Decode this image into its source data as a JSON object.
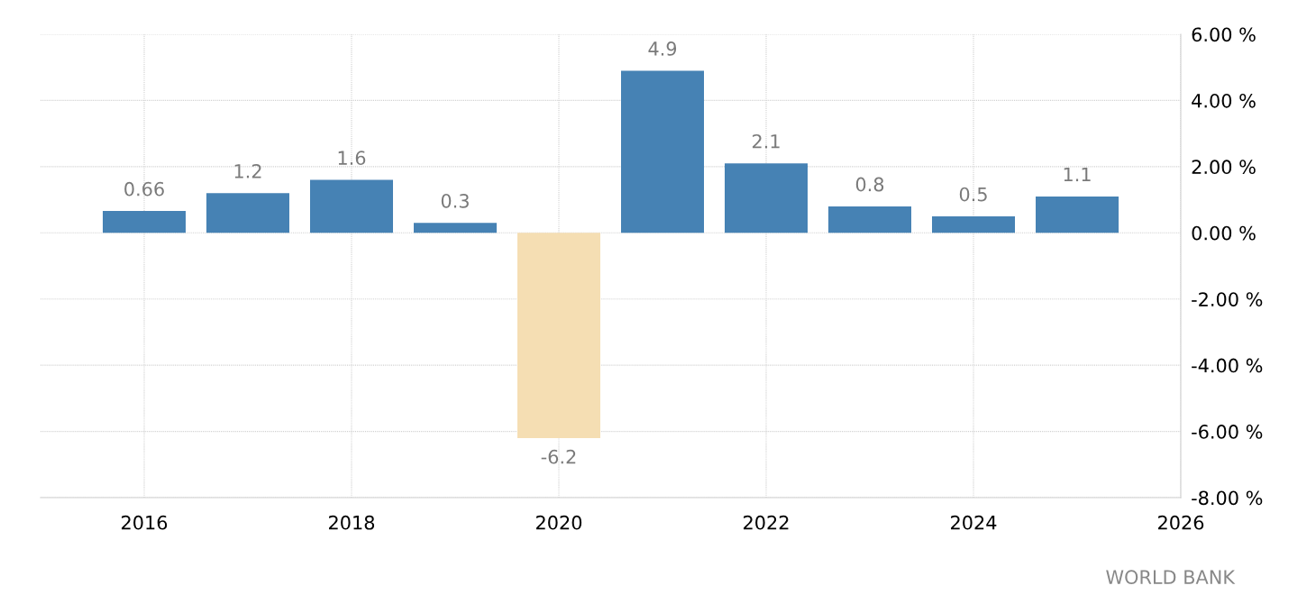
{
  "chart_data": {
    "type": "bar",
    "x": [
      2016,
      2017,
      2018,
      2019,
      2020,
      2021,
      2022,
      2023,
      2024,
      2025
    ],
    "values": [
      0.66,
      1.2,
      1.6,
      0.3,
      -6.2,
      4.9,
      2.1,
      0.8,
      0.5,
      1.1
    ],
    "colors": [
      "#4682b4",
      "#4682b4",
      "#4682b4",
      "#4682b4",
      "#f5deb3",
      "#4682b4",
      "#4682b4",
      "#4682b4",
      "#4682b4",
      "#4682b4"
    ],
    "data_labels": true,
    "xlim": [
      2015,
      2026
    ],
    "xticks": [
      2016,
      2018,
      2020,
      2022,
      2024,
      2026
    ],
    "ylim": [
      -8,
      6
    ],
    "yticks": [
      {
        "value": -8,
        "label": "-8.00 %"
      },
      {
        "value": -6,
        "label": "-6.00 %"
      },
      {
        "value": -4,
        "label": "-4.00 %"
      },
      {
        "value": -2,
        "label": "-2.00 %"
      },
      {
        "value": 0,
        "label": "0.00 %"
      },
      {
        "value": 2,
        "label": "2.00 %"
      },
      {
        "value": 4,
        "label": "4.00 %"
      },
      {
        "value": 6,
        "label": "6.00 %"
      }
    ],
    "grid": true,
    "annotations": [
      "WORLD BANK"
    ]
  }
}
